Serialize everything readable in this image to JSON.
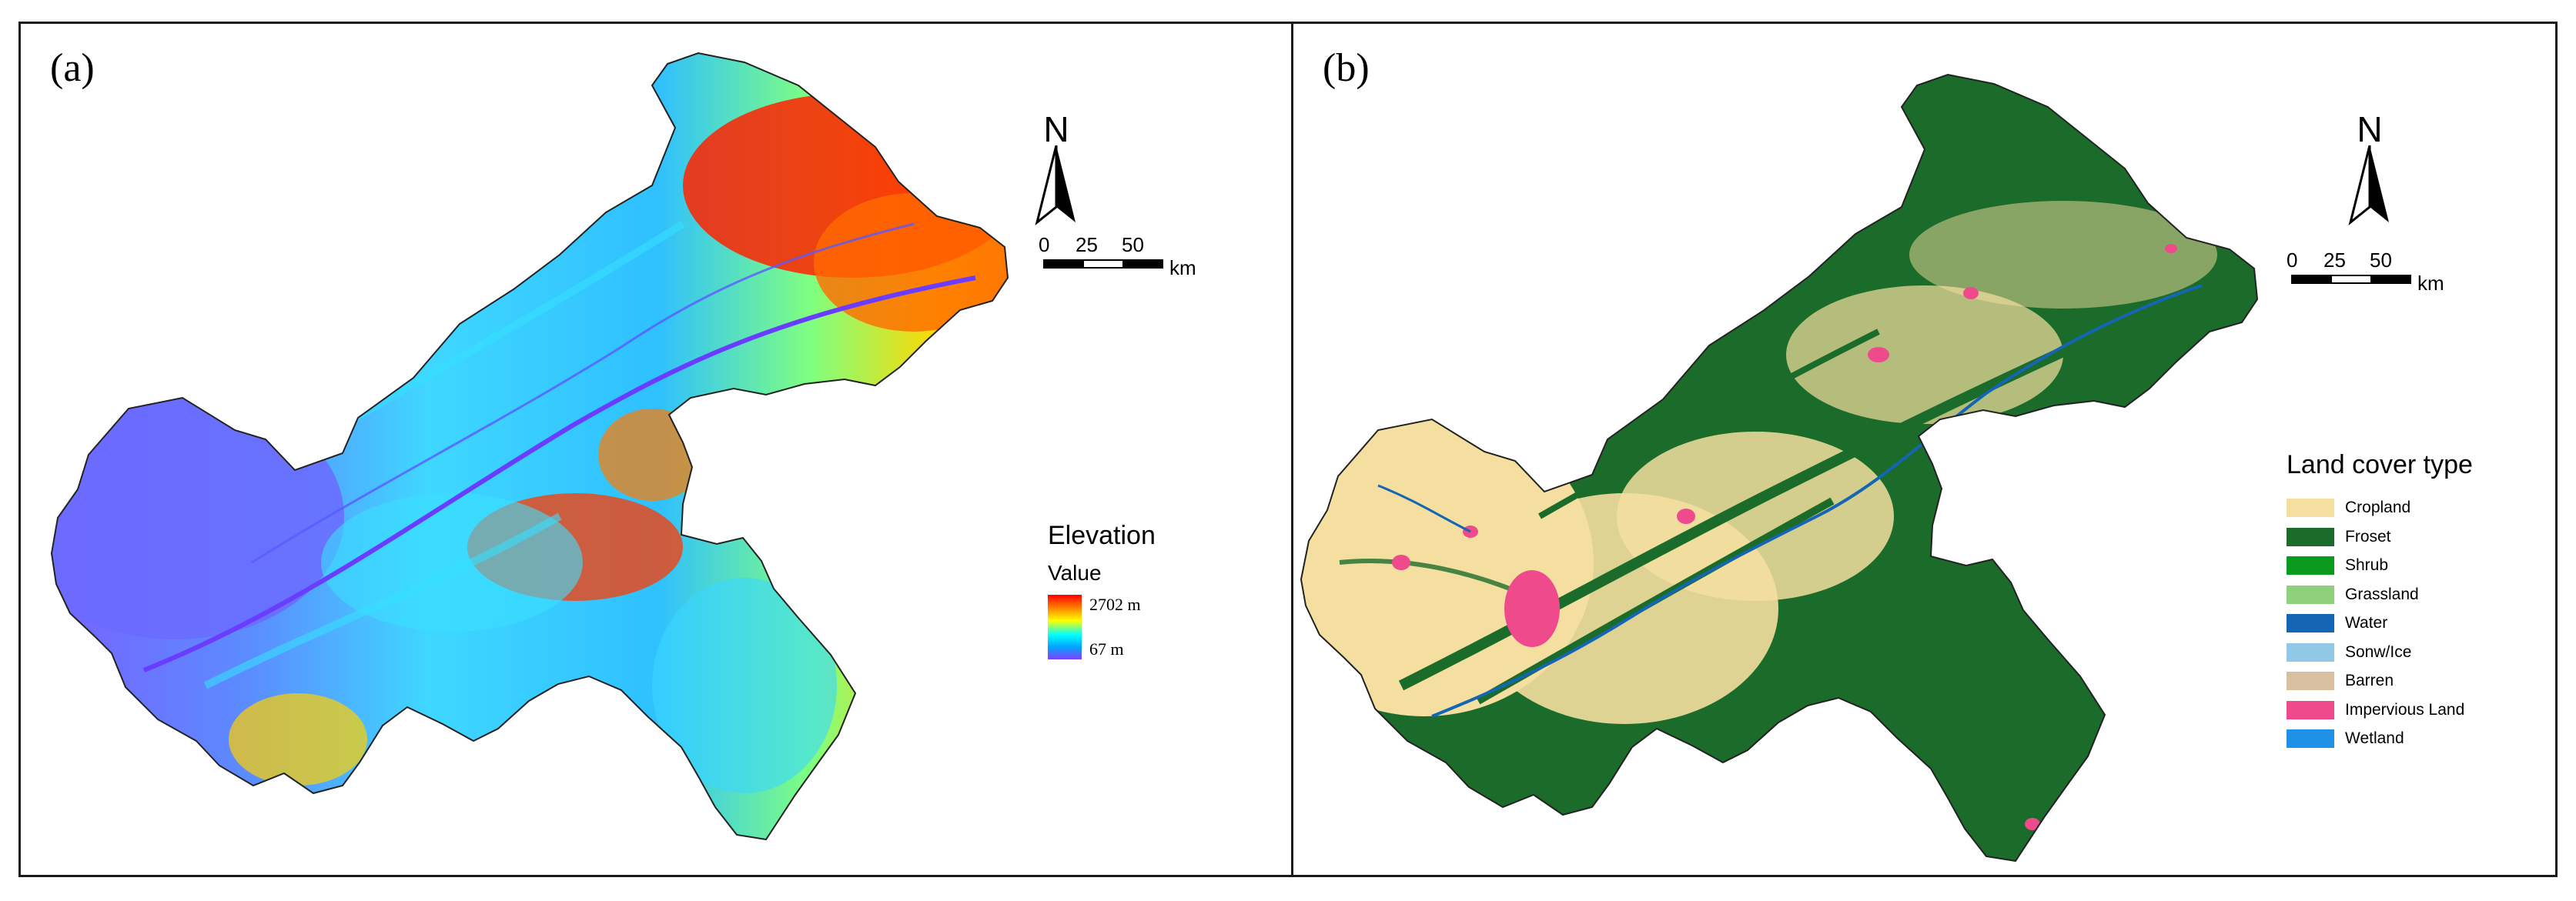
{
  "panels": [
    {
      "label": "(a)",
      "legend": {
        "title": "Elevation",
        "subtitle": "Value",
        "max_label": "2702 m",
        "min_label": "67 m",
        "ramp_colors": [
          "#ff0000",
          "#ff7f00",
          "#ffff00",
          "#00ffff",
          "#00a8ff",
          "#7f3fff"
        ]
      },
      "north": {
        "letter": "N"
      },
      "scale": {
        "ticks": [
          "0",
          "25",
          "50"
        ],
        "unit": "km"
      }
    },
    {
      "label": "(b)",
      "legend": {
        "title": "Land cover type",
        "items": [
          {
            "label": "Cropland",
            "color": "#f5dfa0"
          },
          {
            "label": "Froset",
            "color": "#1b6b2a"
          },
          {
            "label": "Shrub",
            "color": "#0a9a1e"
          },
          {
            "label": "Grassland",
            "color": "#8fd17a"
          },
          {
            "label": "Water",
            "color": "#1565b5"
          },
          {
            "label": "Sonw/Ice",
            "color": "#8fc9e6"
          },
          {
            "label": "Barren",
            "color": "#d8bfa0"
          },
          {
            "label": "Impervious Land",
            "color": "#ef4a8c"
          },
          {
            "label": "Wetland",
            "color": "#1e90e6"
          }
        ]
      },
      "north": {
        "letter": "N"
      },
      "scale": {
        "ticks": [
          "0",
          "25",
          "50"
        ],
        "unit": "km"
      }
    }
  ]
}
